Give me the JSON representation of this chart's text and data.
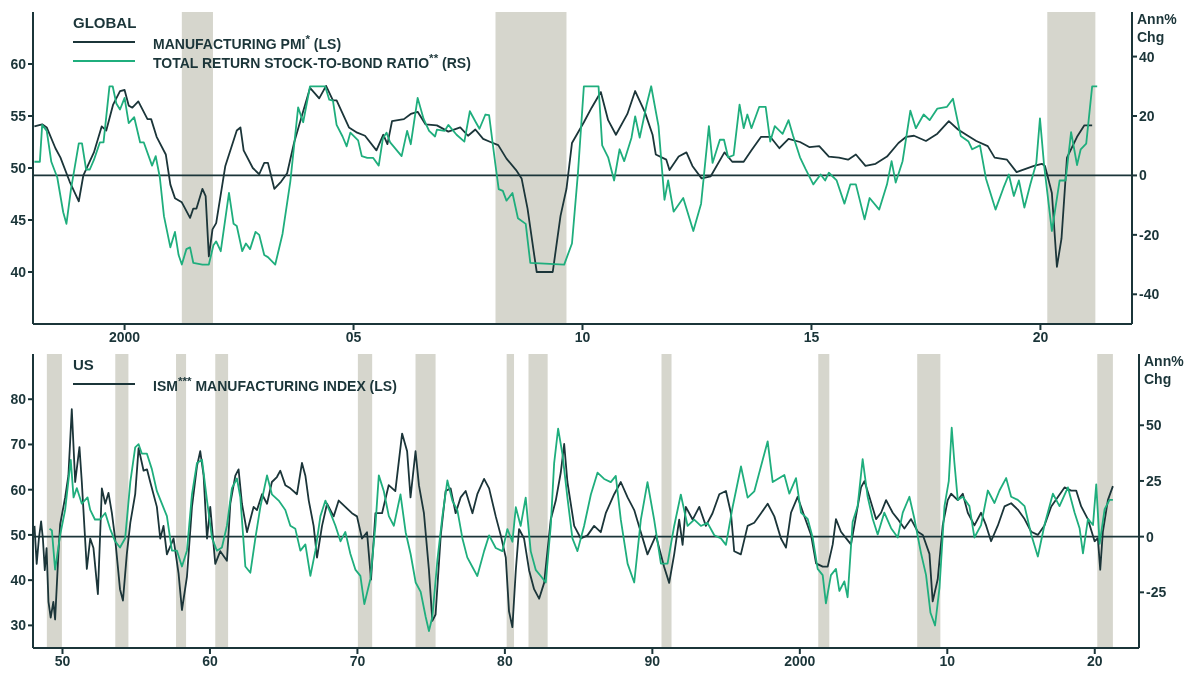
{
  "chart_data": [
    {
      "type": "line",
      "title": "GLOBAL",
      "y2label": "Ann% Chg",
      "xlim": [
        1998,
        2022
      ],
      "xticks": [
        {
          "value": 2000,
          "label": "2000"
        },
        {
          "value": 2005,
          "label": "05"
        },
        {
          "value": 2010,
          "label": "10"
        },
        {
          "value": 2015,
          "label": "15"
        },
        {
          "value": 2020,
          "label": "20"
        }
      ],
      "ylim": [
        35,
        65
      ],
      "yticks": [
        40,
        45,
        50,
        55,
        60
      ],
      "y2lim": [
        -50,
        55
      ],
      "y2ticks": [
        -40,
        -20,
        0,
        20,
        40
      ],
      "legend": "top left",
      "marker": "none",
      "line_style": "solid",
      "bands": [
        {
          "axis": "x",
          "from": 2001.25,
          "to": 2001.93,
          "color": "#d6d6cd"
        },
        {
          "axis": "x",
          "from": 2008.1,
          "to": 2009.65,
          "color": "#d6d6cd"
        },
        {
          "axis": "x",
          "from": 2020.15,
          "to": 2021.2,
          "color": "#d6d6cd"
        }
      ],
      "ref_lines": [
        {
          "axis": "y2",
          "value": 0,
          "color": "#1b3539"
        }
      ],
      "series": [
        {
          "name": "MANUFACTURING PMI$^{*}$ (LS)",
          "color": "#1b3539",
          "axis": "y",
          "x": [
            1998.03,
            1998.2,
            1998.3,
            1998.49,
            1998.6,
            1998.8,
            1999.0,
            1999.1,
            1999.33,
            1999.5,
            1999.6,
            1999.75,
            1999.9,
            2000.0,
            2000.09,
            2000.17,
            2000.3,
            2000.5,
            2000.58,
            2000.7,
            2000.9,
            2001.0,
            2001.1,
            2001.25,
            2001.43,
            2001.5,
            2001.57,
            2001.7,
            2001.77,
            2001.84,
            2001.92,
            2002.0,
            2002.2,
            2002.45,
            2002.53,
            2002.6,
            2002.8,
            2002.94,
            2003.05,
            2003.13,
            2003.27,
            2003.42,
            2003.55,
            2003.7,
            2003.87,
            2004.05,
            2004.25,
            2004.4,
            2004.55,
            2004.63,
            2004.9,
            2005.08,
            2005.25,
            2005.5,
            2005.65,
            2005.74,
            2005.84,
            2006.1,
            2006.25,
            2006.4,
            2006.57,
            2006.82,
            2007.07,
            2007.33,
            2007.5,
            2007.66,
            2007.83,
            2007.99,
            2008.16,
            2008.34,
            2008.55,
            2008.67,
            2008.8,
            2008.93,
            2009.0,
            2009.35,
            2009.52,
            2009.65,
            2009.77,
            2010.03,
            2010.2,
            2010.4,
            2010.56,
            2010.73,
            2010.98,
            2011.15,
            2011.36,
            2011.53,
            2011.6,
            2011.83,
            2011.9,
            2012.1,
            2012.27,
            2012.4,
            2012.6,
            2012.8,
            2013.1,
            2013.27,
            2013.52,
            2013.69,
            2013.9,
            2014.1,
            2014.3,
            2014.5,
            2014.75,
            2014.96,
            2015.17,
            2015.38,
            2015.6,
            2015.8,
            2015.97,
            2016.18,
            2016.4,
            2016.65,
            2016.9,
            2017.07,
            2017.24,
            2017.5,
            2017.75,
            2018.0,
            2018.2,
            2018.38,
            2018.6,
            2018.85,
            2019.0,
            2019.27,
            2019.48,
            2019.6,
            2019.86,
            2020.03,
            2020.1,
            2020.25,
            2020.36,
            2020.46,
            2020.58,
            2020.8,
            2020.96,
            2021.13
          ],
          "values": [
            54.0,
            54.2,
            53.9,
            51.9,
            51.0,
            48.7,
            46.8,
            49.3,
            51.5,
            54.0,
            53.6,
            56.1,
            57.4,
            57.5,
            56.0,
            55.8,
            56.4,
            54.7,
            54.7,
            53.0,
            51.3,
            48.4,
            47.1,
            46.7,
            45.2,
            46.1,
            46.1,
            48.0,
            47.3,
            41.5,
            44.1,
            44.7,
            50.2,
            53.6,
            53.9,
            51.7,
            50.0,
            49.4,
            50.5,
            50.5,
            48.0,
            48.7,
            49.5,
            52.4,
            55.0,
            57.7,
            56.7,
            57.9,
            56.5,
            56.5,
            53.9,
            53.4,
            53.1,
            51.7,
            53.2,
            52.3,
            54.5,
            54.7,
            55.2,
            55.4,
            54.2,
            54.1,
            53.5,
            53.9,
            53.1,
            53.7,
            52.8,
            52.5,
            52.2,
            50.9,
            49.8,
            49.0,
            46.1,
            42.1,
            40.0,
            40.0,
            45.4,
            48.0,
            52.4,
            54.4,
            55.8,
            57.3,
            54.6,
            53.2,
            55.2,
            57.4,
            55.4,
            53.2,
            51.3,
            50.8,
            49.8,
            51.1,
            51.5,
            50.2,
            49.0,
            49.2,
            51.5,
            50.6,
            50.6,
            51.7,
            53.0,
            53.0,
            51.9,
            52.8,
            52.5,
            52.0,
            52.1,
            51.1,
            51.0,
            50.8,
            51.3,
            50.2,
            50.4,
            51.1,
            52.4,
            53.0,
            53.1,
            52.6,
            53.3,
            54.5,
            53.7,
            53.2,
            52.6,
            52.1,
            51.0,
            50.8,
            49.6,
            49.8,
            50.2,
            50.4,
            50.2,
            47.6,
            40.5,
            43.2,
            51.0,
            53.0,
            54.1,
            54.1
          ]
        },
        {
          "name": "TOTAL RETURN STOCK-TO-BOND RATIO$^{**}$ (RS)",
          "color": "#1fae7d",
          "axis": "y2",
          "x": [
            1998.03,
            1998.15,
            1998.2,
            1998.3,
            1998.4,
            1998.53,
            1998.66,
            1998.73,
            1998.83,
            1999.0,
            1999.07,
            1999.16,
            1999.24,
            1999.33,
            1999.46,
            1999.54,
            1999.67,
            1999.74,
            1999.82,
            1999.9,
            2000.0,
            2000.09,
            2000.21,
            2000.34,
            2000.42,
            2000.6,
            2000.68,
            2000.77,
            2000.86,
            2001.0,
            2001.1,
            2001.18,
            2001.25,
            2001.35,
            2001.43,
            2001.5,
            2001.7,
            2001.84,
            2001.94,
            2002.0,
            2002.1,
            2002.28,
            2002.38,
            2002.45,
            2002.57,
            2002.65,
            2002.74,
            2002.86,
            2002.94,
            2003.05,
            2003.13,
            2003.29,
            2003.45,
            2003.62,
            2003.79,
            2003.9,
            2004.05,
            2004.38,
            2004.47,
            2004.55,
            2004.63,
            2004.76,
            2004.85,
            2004.93,
            2005.1,
            2005.18,
            2005.3,
            2005.43,
            2005.55,
            2005.64,
            2005.72,
            2005.8,
            2006.05,
            2006.17,
            2006.25,
            2006.4,
            2006.53,
            2006.65,
            2006.78,
            2006.82,
            2006.99,
            2007.07,
            2007.25,
            2007.42,
            2007.54,
            2007.67,
            2007.75,
            2007.88,
            2007.96,
            2008.09,
            2008.17,
            2008.26,
            2008.34,
            2008.47,
            2008.59,
            2008.76,
            2008.86,
            2009.6,
            2009.77,
            2009.9,
            2010.03,
            2010.35,
            2010.43,
            2010.56,
            2010.69,
            2010.81,
            2010.91,
            2011.07,
            2011.15,
            2011.25,
            2011.4,
            2011.5,
            2011.66,
            2011.79,
            2011.87,
            2011.99,
            2012.2,
            2012.42,
            2012.59,
            2012.76,
            2012.84,
            2013.0,
            2013.09,
            2013.18,
            2013.3,
            2013.43,
            2013.52,
            2013.6,
            2013.69,
            2013.86,
            2014.0,
            2014.1,
            2014.2,
            2014.37,
            2014.5,
            2014.6,
            2014.75,
            2014.87,
            2015.04,
            2015.2,
            2015.3,
            2015.38,
            2015.55,
            2015.72,
            2015.85,
            2015.97,
            2016.16,
            2016.27,
            2016.48,
            2016.65,
            2016.75,
            2016.84,
            2016.99,
            2017.16,
            2017.28,
            2017.45,
            2017.58,
            2017.75,
            2017.96,
            2018.09,
            2018.26,
            2018.43,
            2018.51,
            2018.68,
            2018.81,
            2019.02,
            2019.19,
            2019.31,
            2019.42,
            2019.53,
            2019.65,
            2019.78,
            2019.91,
            2019.99,
            2020.08,
            2020.25,
            2020.42,
            2020.55,
            2020.67,
            2020.8,
            2020.88,
            2021.0,
            2021.13,
            2021.24
          ],
          "values": [
            4.6,
            4.6,
            17.0,
            15.0,
            4.6,
            -0.7,
            -12.4,
            -16.3,
            -4.6,
            10.8,
            10.8,
            2.0,
            2.0,
            5.2,
            11.1,
            11.1,
            30,
            30,
            24.2,
            22.2,
            26.1,
            17.6,
            19.6,
            11.1,
            11.1,
            3.3,
            6.5,
            -0.7,
            -13.7,
            -24.2,
            -19.0,
            -26.8,
            -30,
            -24.8,
            -24.2,
            -29.4,
            -30,
            -30,
            -23.5,
            -22.2,
            -25.5,
            -5.9,
            -16.3,
            -17.0,
            -25.5,
            -22.9,
            -24.8,
            -19.0,
            -20.0,
            -26.8,
            -27.5,
            -30,
            -19.6,
            -2.0,
            22.9,
            17.9,
            30,
            30,
            25.5,
            25.2,
            17.0,
            13.1,
            9.8,
            14.4,
            11.8,
            6.5,
            5.9,
            5.9,
            3.3,
            12.4,
            14.4,
            11.1,
            6.5,
            15.0,
            10.5,
            26.1,
            19.0,
            15.0,
            13.1,
            15.4,
            15.0,
            17.0,
            13.7,
            11.4,
            21.6,
            17.9,
            15.7,
            20.5,
            20.3,
            4.6,
            -4.6,
            -5.2,
            -8.5,
            -5.9,
            -14.4,
            -16.3,
            -29.4,
            -30,
            -22.9,
            0.7,
            30,
            30,
            10.1,
            6.1,
            -1.7,
            8.8,
            4.8,
            12.7,
            19.9,
            12.7,
            23.8,
            30,
            16.6,
            -8.2,
            -1.7,
            -12.2,
            -7.6,
            -18.7,
            -9.5,
            16.6,
            4.2,
            12.0,
            12.0,
            6.1,
            6.8,
            23.8,
            15.9,
            20.5,
            15.9,
            23.1,
            23.1,
            11.4,
            16.6,
            14.0,
            18.6,
            13.3,
            6.1,
            2.2,
            -3.0,
            0.3,
            -1.7,
            0.9,
            -1.7,
            -9.5,
            -3.0,
            -3.0,
            -14.8,
            -7.6,
            -11.5,
            -3.0,
            4.8,
            -2.4,
            4.8,
            21.8,
            15.9,
            20.5,
            18.6,
            22.5,
            23.1,
            25.8,
            13.3,
            11.4,
            8.8,
            10.1,
            -1.0,
            -11.5,
            -4.3,
            0.3,
            -6.9,
            -1.7,
            -10.8,
            -3.0,
            4.2,
            19.2,
            3.5,
            -18.7,
            -1.7,
            -1.7,
            14.6,
            3.5,
            8.8,
            10.7,
            30,
            30
          ]
        }
      ]
    },
    {
      "type": "line",
      "title": "US",
      "y2label": "Ann% Chg",
      "xlim": [
        1948,
        2023
      ],
      "xticks": [
        {
          "value": 1950,
          "label": "50"
        },
        {
          "value": 1960,
          "label": "60"
        },
        {
          "value": 1970,
          "label": "70"
        },
        {
          "value": 1980,
          "label": "80"
        },
        {
          "value": 1990,
          "label": "90"
        },
        {
          "value": 2000,
          "label": "2000"
        },
        {
          "value": 2010,
          "label": "10"
        },
        {
          "value": 2020,
          "label": "20"
        }
      ],
      "ylim": [
        25,
        90
      ],
      "yticks": [
        30,
        40,
        50,
        60,
        70,
        80
      ],
      "y2lim": [
        -50,
        82
      ],
      "y2ticks": [
        -25,
        0,
        25,
        50
      ],
      "legend": "top left",
      "marker": "none",
      "line_style": "solid",
      "bands": [
        {
          "axis": "x",
          "from": 1948.94,
          "to": 1949.96,
          "color": "#d6d6cd"
        },
        {
          "axis": "x",
          "from": 1953.58,
          "to": 1954.47,
          "color": "#d6d6cd"
        },
        {
          "axis": "x",
          "from": 1957.7,
          "to": 1958.38,
          "color": "#d6d6cd"
        },
        {
          "axis": "x",
          "from": 1960.36,
          "to": 1961.23,
          "color": "#d6d6cd"
        },
        {
          "axis": "x",
          "from": 1970.03,
          "to": 1971.0,
          "color": "#d6d6cd"
        },
        {
          "axis": "x",
          "from": 1973.94,
          "to": 1975.3,
          "color": "#d6d6cd"
        },
        {
          "axis": "x",
          "from": 1980.12,
          "to": 1980.62,
          "color": "#d6d6cd"
        },
        {
          "axis": "x",
          "from": 1981.6,
          "to": 1982.9,
          "color": "#d6d6cd"
        },
        {
          "axis": "x",
          "from": 1990.62,
          "to": 1991.3,
          "color": "#d6d6cd"
        },
        {
          "axis": "x",
          "from": 2001.25,
          "to": 2002.0,
          "color": "#d6d6cd"
        },
        {
          "axis": "x",
          "from": 2007.96,
          "to": 2009.53,
          "color": "#d6d6cd"
        },
        {
          "axis": "x",
          "from": 2020.17,
          "to": 2021.23,
          "color": "#d6d6cd"
        }
      ],
      "ref_lines": [
        {
          "axis": "y2",
          "value": 0,
          "color": "#1b3539"
        }
      ],
      "series": [
        {
          "name": "ISM$^{***}$ MANUFACTURING INDEX (LS)",
          "color": "#1b3539",
          "axis": "y",
          "x": [
            1948.1,
            1948.25,
            1948.4,
            1948.55,
            1948.67,
            1948.8,
            1948.92,
            1949.05,
            1949.2,
            1949.38,
            1949.5,
            1949.73,
            1949.84,
            1950.18,
            1950.4,
            1950.63,
            1950.86,
            1951.15,
            1951.31,
            1951.65,
            1951.88,
            1952.1,
            1952.4,
            1952.67,
            1952.9,
            1953.12,
            1953.35,
            1953.57,
            1953.9,
            1954.1,
            1954.36,
            1954.6,
            1954.93,
            1955.16,
            1955.5,
            1955.73,
            1955.95,
            1956.4,
            1956.63,
            1956.85,
            1957.08,
            1957.53,
            1957.87,
            1958.1,
            1958.44,
            1958.78,
            1959.12,
            1959.34,
            1959.57,
            1959.8,
            1960.02,
            1960.36,
            1960.7,
            1961.15,
            1961.38,
            1961.72,
            1961.94,
            1962.17,
            1962.51,
            1962.96,
            1963.19,
            1963.53,
            1963.87,
            1964.2,
            1964.54,
            1964.77,
            1965.11,
            1965.45,
            1965.9,
            1966.24,
            1966.47,
            1966.7,
            1967.03,
            1967.26,
            1967.6,
            1967.94,
            1968.39,
            1968.73,
            1969.18,
            1969.63,
            1969.97,
            1970.31,
            1970.65,
            1970.92,
            1971.22,
            1971.67,
            1972.12,
            1972.57,
            1973.03,
            1973.37,
            1973.6,
            1973.94,
            1974.17,
            1974.51,
            1974.85,
            1975.08,
            1975.3,
            1975.65,
            1975.98,
            1976.32,
            1976.66,
            1977.0,
            1977.34,
            1977.8,
            1978.13,
            1978.59,
            1978.93,
            1979.38,
            1979.72,
            1980.06,
            1980.28,
            1980.51,
            1980.74,
            1980.96,
            1981.3,
            1981.64,
            1981.98,
            1982.32,
            1982.66,
            1983.11,
            1983.45,
            1983.79,
            1984.02,
            1984.24,
            1984.7,
            1985.15,
            1985.6,
            1986.05,
            1986.5,
            1986.84,
            1987.41,
            1987.86,
            1988.32,
            1988.77,
            1989.22,
            1989.67,
            1990.24,
            1990.8,
            1991.14,
            1991.48,
            1991.82,
            1992.05,
            1992.27,
            1992.73,
            1993.18,
            1993.63,
            1994.08,
            1994.54,
            1994.99,
            1995.33,
            1995.55,
            1996.0,
            1996.46,
            1996.91,
            1997.37,
            1997.82,
            1998.27,
            1998.72,
            1999.06,
            1999.4,
            1999.85,
            2000.3,
            2000.76,
            2001.1,
            2001.55,
            2001.89,
            2002.23,
            2002.45,
            2002.79,
            2003.13,
            2003.47,
            2003.7,
            2004.15,
            2004.38,
            2004.72,
            2005.17,
            2005.51,
            2005.85,
            2006.3,
            2006.64,
            2007.09,
            2007.54,
            2008.0,
            2008.34,
            2008.79,
            2009.01,
            2009.35,
            2009.69,
            2010.03,
            2010.26,
            2010.71,
            2011.05,
            2011.39,
            2011.84,
            2012.29,
            2012.63,
            2012.97,
            2013.43,
            2013.88,
            2014.33,
            2014.78,
            2015.24,
            2015.69,
            2016.14,
            2016.59,
            2017.05,
            2017.5,
            2017.95,
            2018.4,
            2018.74,
            2019.08,
            2019.53,
            2019.99,
            2020.21,
            2020.37,
            2020.55,
            2020.89,
            2021.23
          ],
          "values": [
            52.0,
            43.6,
            49.2,
            53.0,
            49.2,
            42.2,
            47.1,
            35.2,
            31.7,
            35.2,
            31.3,
            46.4,
            52.3,
            58.3,
            63.1,
            77.8,
            61.7,
            69.4,
            61.7,
            42.5,
            49.2,
            47.1,
            36.9,
            60.3,
            56.9,
            59.3,
            54.8,
            49.2,
            38.0,
            35.5,
            45.7,
            52.7,
            59.0,
            69.2,
            64.2,
            64.5,
            61.7,
            56.2,
            49.2,
            52.0,
            45.7,
            49.2,
            41.5,
            33.4,
            40.8,
            56.2,
            65.2,
            68.5,
            63.1,
            49.2,
            56.2,
            43.6,
            46.4,
            44.3,
            56.9,
            63.1,
            64.5,
            56.9,
            50.6,
            56.2,
            55.5,
            59.0,
            56.9,
            61.7,
            62.8,
            64.2,
            61.0,
            60.3,
            59.0,
            65.9,
            63.1,
            57.6,
            52.0,
            45.0,
            52.0,
            56.9,
            54.1,
            57.6,
            56.2,
            54.8,
            54.1,
            49.2,
            50.6,
            40.1,
            54.8,
            54.8,
            61.0,
            59.7,
            72.4,
            68.5,
            58.3,
            68.5,
            61.0,
            54.8,
            42.2,
            31.0,
            32.4,
            49.9,
            59.7,
            60.3,
            54.8,
            58.3,
            59.7,
            54.8,
            59.0,
            62.4,
            60.3,
            54.1,
            49.9,
            45.0,
            33.1,
            29.6,
            42.2,
            51.3,
            49.2,
            42.2,
            38.0,
            35.9,
            39.4,
            53.4,
            57.6,
            63.8,
            70.1,
            61.7,
            52.0,
            49.2,
            49.9,
            52.0,
            50.6,
            54.8,
            59.0,
            61.7,
            58.3,
            55.5,
            50.6,
            45.7,
            49.9,
            42.9,
            39.4,
            45.7,
            53.4,
            47.8,
            56.2,
            53.4,
            56.2,
            52.0,
            54.8,
            59.0,
            59.7,
            54.8,
            46.4,
            45.7,
            52.0,
            52.7,
            54.8,
            56.9,
            54.1,
            49.2,
            47.2,
            54.9,
            58.4,
            54.2,
            50.0,
            43.7,
            43.0,
            43.0,
            47.9,
            53.5,
            50.7,
            49.3,
            47.9,
            52.1,
            60.5,
            61.9,
            58.4,
            53.5,
            54.9,
            57.7,
            54.9,
            53.5,
            51.4,
            53.5,
            50.7,
            50.0,
            45.8,
            35.3,
            40.2,
            52.1,
            57.7,
            59.1,
            57.7,
            59.1,
            54.9,
            52.1,
            54.9,
            52.1,
            48.6,
            52.1,
            56.3,
            57.0,
            55.6,
            53.5,
            50.7,
            50.0,
            52.1,
            56.3,
            58.4,
            60.5,
            59.8,
            59.8,
            56.3,
            53.5,
            48.6,
            49.3,
            42.3,
            50.7,
            57.7,
            60.8
          ]
        },
        {
          "color": "#1fae7d",
          "axis": "y2",
          "x": [
            1949.12,
            1949.28,
            1949.5,
            1949.84,
            1950.18,
            1950.56,
            1950.75,
            1950.97,
            1951.31,
            1951.7,
            1951.88,
            1952.2,
            1952.54,
            1952.9,
            1953.23,
            1953.57,
            1953.9,
            1954.25,
            1954.6,
            1954.93,
            1955.16,
            1955.38,
            1955.72,
            1956.06,
            1956.4,
            1956.74,
            1957.08,
            1957.42,
            1957.76,
            1958.1,
            1958.44,
            1958.78,
            1959.12,
            1959.46,
            1959.8,
            1960.14,
            1960.47,
            1960.81,
            1961.15,
            1961.49,
            1961.83,
            1962.06,
            1962.4,
            1962.74,
            1963.08,
            1963.42,
            1963.87,
            1964.2,
            1964.66,
            1965.11,
            1965.45,
            1965.79,
            1966.13,
            1966.47,
            1966.81,
            1967.15,
            1967.49,
            1967.83,
            1968.17,
            1968.51,
            1968.85,
            1969.18,
            1969.52,
            1969.86,
            1970.2,
            1970.47,
            1970.88,
            1971.22,
            1971.45,
            1971.79,
            1972.13,
            1972.47,
            1972.92,
            1973.27,
            1973.61,
            1973.95,
            1974.29,
            1974.63,
            1974.85,
            1975.08,
            1975.42,
            1975.76,
            1976.1,
            1976.44,
            1976.78,
            1977.12,
            1977.45,
            1977.79,
            1978.13,
            1978.59,
            1978.93,
            1979.38,
            1979.83,
            1980.17,
            1980.51,
            1980.74,
            1981.07,
            1981.41,
            1981.75,
            1982.09,
            1982.43,
            1982.77,
            1983.11,
            1983.34,
            1983.61,
            1983.9,
            1984.24,
            1984.58,
            1984.92,
            1985.37,
            1985.83,
            1986.28,
            1986.73,
            1987.18,
            1987.52,
            1987.86,
            1988.32,
            1988.77,
            1989.22,
            1989.67,
            1990.12,
            1990.58,
            1991.03,
            1991.48,
            1991.93,
            1992.39,
            1992.84,
            1993.29,
            1993.74,
            1994.2,
            1994.65,
            1994.99,
            1995.44,
            1996.01,
            1996.46,
            1996.91,
            1997.48,
            1997.82,
            1998.16,
            1998.5,
            1998.95,
            1999.29,
            1999.74,
            2000.08,
            2000.53,
            2000.87,
            2001.21,
            2001.55,
            2001.77,
            2002.11,
            2002.45,
            2002.68,
            2003.02,
            2003.24,
            2003.58,
            2003.92,
            2004.26,
            2004.6,
            2004.94,
            2005.28,
            2005.73,
            2006.19,
            2006.64,
            2006.98,
            2007.43,
            2007.77,
            2008.22,
            2008.56,
            2008.86,
            2009.17,
            2009.47,
            2009.81,
            2010.1,
            2010.3,
            2010.48,
            2010.71,
            2011.05,
            2011.5,
            2011.84,
            2012.29,
            2012.75,
            2013.2,
            2013.54,
            2013.99,
            2014.33,
            2014.78,
            2015.24,
            2015.69,
            2016.14,
            2016.59,
            2017.16,
            2017.61,
            2018.18,
            2018.63,
            2018.97,
            2019.2,
            2019.54,
            2019.88,
            2020.1,
            2020.33,
            2020.67,
            2021.0,
            2021.23
          ],
          "values": [
            3.5,
            2.8,
            -14.8,
            0.7,
            12.0,
            34.5,
            17.6,
            21.8,
            14.8,
            17.6,
            12.0,
            7.7,
            7.7,
            10.6,
            3.5,
            -2.1,
            -4.9,
            -0.7,
            24.6,
            40.1,
            41.5,
            37.3,
            37.3,
            30.3,
            20.4,
            14.8,
            9.2,
            -6.3,
            -6.3,
            -13.4,
            -6.3,
            19.0,
            33.1,
            34.5,
            16.2,
            -0.7,
            -6.3,
            -4.9,
            4.9,
            21.8,
            26.1,
            17.6,
            -13.4,
            -16.2,
            -0.7,
            13.4,
            27.5,
            19.0,
            16.2,
            12.0,
            4.9,
            3.5,
            -6.3,
            -3.5,
            -17.6,
            -6.3,
            9.2,
            16.2,
            10.6,
            4.9,
            -2.1,
            2.1,
            -7.7,
            -14.8,
            -17.6,
            -30.3,
            -19.0,
            4.9,
            27.5,
            20.4,
            9.2,
            4.9,
            19.0,
            2.0,
            -7.9,
            -20.6,
            -24.8,
            -36.1,
            -42.4,
            -36.1,
            -10.7,
            9.0,
            25.2,
            16.1,
            11.8,
            -0.8,
            -9.3,
            -13.5,
            -17.7,
            -6.5,
            0.6,
            -5.1,
            -6.5,
            3.4,
            -2.3,
            13.2,
            4.8,
            17.5,
            -6.5,
            -14.9,
            -17.7,
            -20.6,
            4.8,
            33.0,
            48.5,
            37.2,
            17.5,
            -0.8,
            -6.5,
            4.8,
            18.9,
            28.7,
            25.9,
            24.5,
            27.3,
            7.6,
            -12.1,
            -20.6,
            7.6,
            24.5,
            7.6,
            -12.1,
            -12.1,
            4.8,
            18.9,
            4.8,
            7.6,
            4.8,
            6.2,
            0.6,
            -0.8,
            -3.7,
            13.2,
            31.5,
            17.5,
            20.3,
            34.4,
            42.8,
            24.5,
            25.9,
            27.7,
            19.3,
            26.3,
            10.8,
            8.0,
            -0.4,
            -14.5,
            -17.3,
            -30.0,
            -17.3,
            -14.5,
            -24.4,
            -20.1,
            -27.2,
            6.6,
            13.7,
            34.8,
            17.9,
            8.0,
            1.0,
            10.8,
            3.8,
            -0.4,
            10.8,
            17.9,
            8.0,
            -7.5,
            -17.3,
            -34.2,
            -39.9,
            -23.0,
            13.7,
            24.9,
            48.9,
            33.4,
            16.5,
            17.9,
            13.7,
            -0.4,
            5.2,
            20.7,
            15.1,
            20.7,
            26.3,
            17.9,
            16.5,
            13.7,
            1.0,
            -8.9,
            5.2,
            19.3,
            13.7,
            22.1,
            10.8,
            3.8,
            -7.5,
            8.0,
            5.2,
            23.5,
            -3.2,
            12.3,
            16.5,
            16.5
          ]
        }
      ]
    }
  ]
}
